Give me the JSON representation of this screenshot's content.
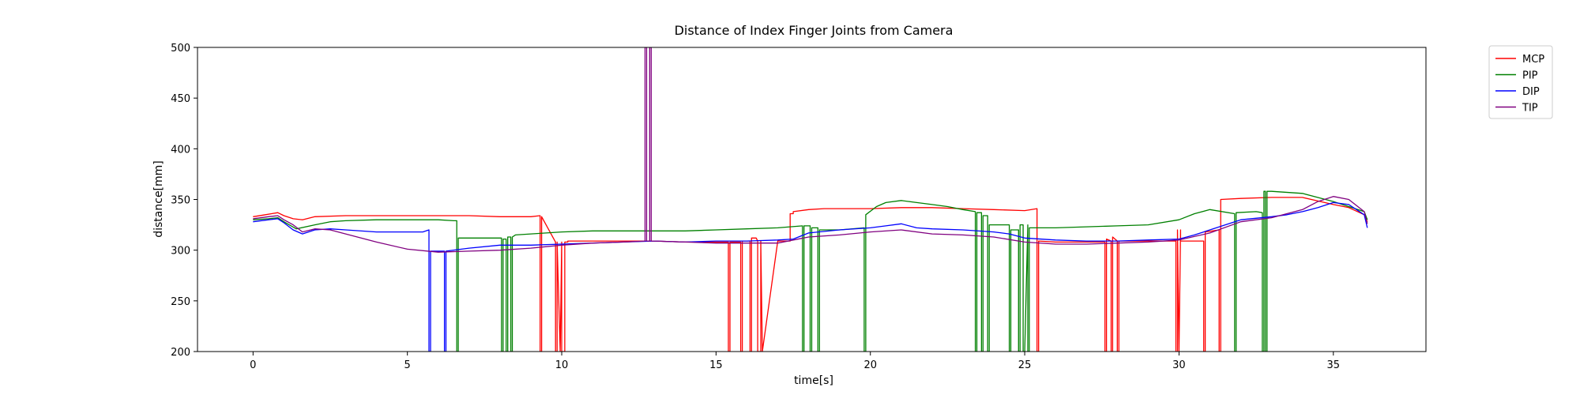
{
  "chart_data": {
    "type": "line",
    "title": "Distance of Index Finger Joints from Camera",
    "xlabel": "time[s]",
    "ylabel": "distance[mm]",
    "xlim": [
      -1.8,
      38
    ],
    "ylim": [
      200,
      500
    ],
    "xticks": [
      0,
      5,
      10,
      15,
      20,
      25,
      30,
      35
    ],
    "yticks": [
      200,
      250,
      300,
      350,
      400,
      450,
      500
    ],
    "grid": false,
    "legend_position": "upper-right-outside",
    "series": [
      {
        "name": "MCP",
        "color": "#ff0000",
        "x": [
          0.0,
          0.4,
          0.6,
          0.8,
          1.0,
          1.3,
          1.6,
          2.0,
          3.0,
          5.0,
          7.0,
          8.0,
          9.0,
          9.3,
          9.3,
          9.35,
          9.35,
          9.8,
          9.8,
          9.85,
          9.85,
          9.95,
          9.95,
          10.0,
          10.0,
          10.1,
          10.1,
          10.2,
          10.2,
          11.0,
          12.0,
          13.0,
          14.0,
          15.0,
          15.4,
          15.4,
          15.45,
          15.45,
          15.8,
          15.8,
          15.85,
          15.85,
          16.1,
          16.1,
          16.15,
          16.15,
          16.3,
          16.35,
          16.35,
          16.45,
          16.45,
          16.5,
          16.5,
          17.0,
          17.3,
          17.4,
          17.4,
          17.5,
          17.5,
          18.0,
          18.5,
          19.0,
          20.0,
          21.0,
          22.0,
          23.0,
          24.0,
          25.0,
          25.4,
          25.4,
          25.45,
          25.45,
          26.0,
          27.0,
          27.6,
          27.6,
          27.65,
          27.65,
          27.8,
          27.8,
          27.85,
          27.85,
          28.0,
          28.0,
          28.05,
          28.05,
          29.0,
          29.9,
          29.9,
          29.95,
          29.95,
          30.0,
          30.0,
          30.05,
          30.05,
          30.8,
          30.8,
          30.85,
          30.85,
          31.3,
          31.3,
          31.35,
          31.35,
          32.0,
          33.0,
          34.0,
          35.0,
          35.5,
          36.0,
          36.1
        ],
        "y": [
          333,
          335,
          336,
          337,
          334,
          331,
          330,
          333,
          334,
          334,
          334,
          333,
          333,
          334,
          200,
          200,
          333,
          308,
          200,
          200,
          308,
          200,
          200,
          308,
          200,
          200,
          308,
          308,
          309,
          309,
          309,
          309,
          308,
          308,
          308,
          200,
          200,
          308,
          308,
          200,
          200,
          309,
          309,
          200,
          200,
          312,
          312,
          309,
          200,
          200,
          309,
          200,
          200,
          309,
          309,
          309,
          336,
          336,
          338,
          340,
          341,
          341,
          341,
          342,
          342,
          341,
          340,
          339,
          341,
          200,
          200,
          309,
          308,
          308,
          308,
          200,
          200,
          311,
          309,
          200,
          200,
          313,
          309,
          200,
          200,
          309,
          309,
          309,
          200,
          200,
          320,
          200,
          200,
          320,
          309,
          309,
          200,
          200,
          318,
          320,
          200,
          200,
          350,
          351,
          352,
          352,
          345,
          342,
          335,
          328
        ]
      },
      {
        "name": "PIP",
        "color": "#008000",
        "x": [
          0.0,
          0.5,
          0.8,
          1.0,
          1.4,
          2.0,
          2.5,
          3.0,
          4.0,
          5.0,
          6.0,
          6.5,
          6.6,
          6.6,
          6.65,
          6.65,
          8.05,
          8.05,
          8.1,
          8.1,
          8.2,
          8.2,
          8.25,
          8.25,
          8.3,
          8.35,
          8.35,
          8.4,
          8.4,
          8.5,
          9.0,
          10.0,
          11.0,
          12.0,
          13.0,
          14.0,
          15.0,
          16.0,
          17.0,
          17.8,
          17.8,
          17.85,
          17.85,
          18.0,
          18.05,
          18.05,
          18.1,
          18.1,
          18.3,
          18.3,
          18.35,
          18.35,
          19.0,
          19.8,
          19.8,
          19.85,
          19.85,
          20.2,
          20.5,
          21.0,
          21.5,
          22.0,
          22.5,
          23.0,
          23.4,
          23.4,
          23.45,
          23.45,
          23.6,
          23.6,
          23.65,
          23.65,
          23.8,
          23.8,
          23.85,
          23.85,
          24.0,
          24.5,
          24.5,
          24.55,
          24.55,
          24.8,
          24.8,
          24.85,
          24.85,
          24.9,
          24.95,
          24.95,
          25.0,
          25.1,
          25.1,
          25.15,
          25.15,
          25.3,
          26.0,
          27.0,
          28.0,
          29.0,
          30.0,
          30.5,
          31.0,
          31.8,
          31.8,
          31.85,
          31.85,
          32.5,
          32.7,
          32.7,
          32.75,
          32.75,
          32.8,
          32.8,
          32.85,
          32.85,
          33.0,
          34.0,
          35.0,
          35.5,
          36.0,
          36.1
        ],
        "y": [
          330,
          331,
          332,
          328,
          321,
          325,
          328,
          329,
          330,
          330,
          330,
          329,
          329,
          200,
          200,
          312,
          312,
          200,
          200,
          311,
          311,
          200,
          200,
          313,
          313,
          313,
          200,
          200,
          313,
          315,
          316,
          318,
          319,
          319,
          319,
          319,
          320,
          321,
          322,
          324,
          200,
          200,
          324,
          324,
          324,
          200,
          200,
          322,
          322,
          200,
          200,
          320,
          320,
          322,
          200,
          200,
          335,
          343,
          347,
          349,
          347,
          345,
          343,
          340,
          338,
          200,
          200,
          337,
          337,
          200,
          200,
          334,
          334,
          200,
          200,
          325,
          325,
          325,
          200,
          200,
          320,
          320,
          200,
          200,
          325,
          325,
          325,
          200,
          200,
          325,
          200,
          200,
          322,
          322,
          322,
          323,
          324,
          325,
          330,
          336,
          340,
          336,
          200,
          200,
          337,
          338,
          337,
          200,
          200,
          358,
          358,
          200,
          200,
          358,
          358,
          356,
          348,
          343,
          338,
          330
        ]
      },
      {
        "name": "DIP",
        "color": "#0000ff",
        "x": [
          0.0,
          0.5,
          0.8,
          1.0,
          1.3,
          1.6,
          2.0,
          2.5,
          3.0,
          4.0,
          5.0,
          5.5,
          5.7,
          5.7,
          5.75,
          5.75,
          6.0,
          6.2,
          6.2,
          6.25,
          6.25,
          7.0,
          8.0,
          9.0,
          10.0,
          11.0,
          12.0,
          13.0,
          14.0,
          15.0,
          16.0,
          17.0,
          17.5,
          18.0,
          19.0,
          20.0,
          20.5,
          21.0,
          21.5,
          22.0,
          23.0,
          24.0,
          24.5,
          25.0,
          26.0,
          27.0,
          28.0,
          29.0,
          30.0,
          30.5,
          31.0,
          32.0,
          33.0,
          33.5,
          34.0,
          34.5,
          35.0,
          35.5,
          36.0,
          36.1
        ],
        "y": [
          328,
          330,
          331,
          327,
          320,
          316,
          320,
          321,
          320,
          318,
          318,
          318,
          320,
          200,
          200,
          299,
          299,
          299,
          200,
          200,
          299,
          302,
          305,
          305,
          306,
          307,
          308,
          309,
          308,
          309,
          309,
          310,
          311,
          317,
          320,
          322,
          324,
          326,
          322,
          321,
          320,
          318,
          316,
          312,
          310,
          309,
          309,
          310,
          311,
          315,
          320,
          330,
          333,
          335,
          338,
          342,
          347,
          345,
          335,
          322
        ]
      },
      {
        "name": "TIP",
        "color": "#800080",
        "x": [
          0.0,
          0.5,
          0.8,
          1.0,
          1.3,
          1.6,
          2.0,
          2.5,
          3.0,
          4.0,
          5.0,
          6.0,
          7.0,
          8.0,
          9.0,
          10.0,
          11.0,
          12.0,
          12.7,
          12.7,
          12.75,
          12.75,
          12.85,
          12.85,
          12.9,
          12.9,
          13.0,
          14.0,
          15.0,
          16.0,
          17.0,
          18.0,
          19.0,
          20.0,
          21.0,
          22.0,
          23.0,
          24.0,
          25.0,
          26.0,
          27.0,
          28.0,
          29.0,
          30.0,
          31.0,
          32.0,
          33.0,
          34.0,
          34.5,
          35.0,
          35.5,
          36.0,
          36.1
        ],
        "y": [
          331,
          333,
          334,
          330,
          325,
          318,
          321,
          320,
          316,
          308,
          301,
          298,
          299,
          300,
          302,
          305,
          307,
          308,
          309,
          500,
          500,
          309,
          309,
          500,
          500,
          309,
          309,
          308,
          307,
          307,
          307,
          313,
          315,
          318,
          320,
          316,
          315,
          313,
          308,
          306,
          306,
          307,
          308,
          310,
          317,
          328,
          332,
          340,
          348,
          353,
          350,
          338,
          326
        ]
      }
    ]
  }
}
